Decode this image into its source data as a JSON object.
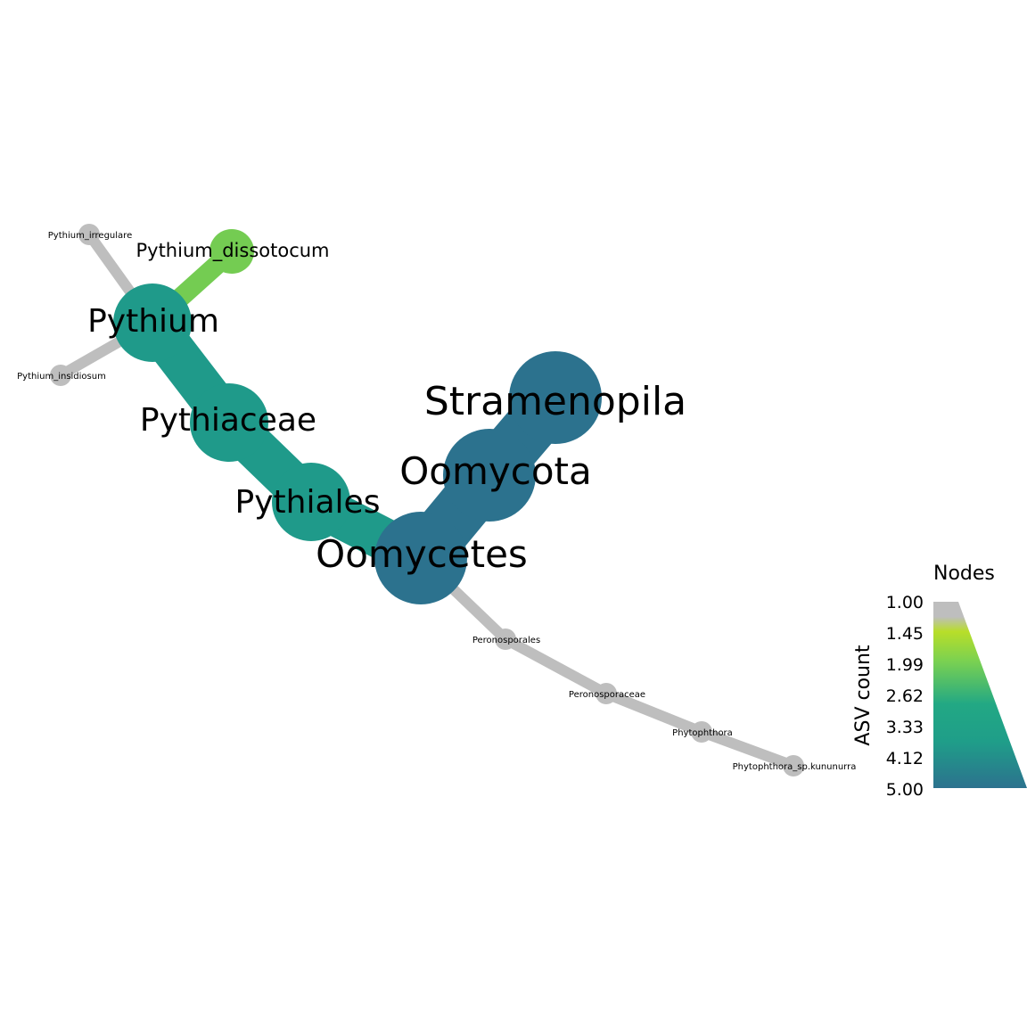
{
  "legend": {
    "title": "Nodes",
    "axis_label": "ASV count",
    "ticks": [
      "1.00",
      "1.45",
      "1.99",
      "2.62",
      "3.33",
      "4.12",
      "5.00"
    ],
    "colors": [
      "#bebebe",
      "#b8de29",
      "#7ad151",
      "#22a884",
      "#1f9e89",
      "#26828e",
      "#2c728e"
    ]
  },
  "nodes": [
    {
      "id": "stramenopila",
      "label": "Stramenopila",
      "asv_count": 5,
      "color": "#2c728e"
    },
    {
      "id": "oomycota",
      "label": "Oomycota",
      "asv_count": 5,
      "color": "#2c728e"
    },
    {
      "id": "oomycetes",
      "label": "Oomycetes",
      "asv_count": 5,
      "color": "#2c728e"
    },
    {
      "id": "pythiales",
      "label": "Pythiales",
      "asv_count": 4,
      "color": "#1f9a8a"
    },
    {
      "id": "pythiaceae",
      "label": "Pythiaceae",
      "asv_count": 4,
      "color": "#1f9a8a"
    },
    {
      "id": "pythium",
      "label": "Pythium",
      "asv_count": 4,
      "color": "#1f9a8a"
    },
    {
      "id": "pythium_dissotocum",
      "label": "Pythium_dissotocum",
      "asv_count": 2,
      "color": "#74cc52"
    },
    {
      "id": "pythium_irregulare",
      "label": "Pythium_irregulare",
      "asv_count": 1,
      "color": "#bebebe"
    },
    {
      "id": "pythium_insidiosum",
      "label": "Pythium_insidiosum",
      "asv_count": 1,
      "color": "#bebebe"
    },
    {
      "id": "peronosporales",
      "label": "Peronosporales",
      "asv_count": 1,
      "color": "#bebebe"
    },
    {
      "id": "peronosporaceae",
      "label": "Peronosporaceae",
      "asv_count": 1,
      "color": "#bebebe"
    },
    {
      "id": "phytophthora",
      "label": "Phytophthora",
      "asv_count": 1,
      "color": "#bebebe"
    },
    {
      "id": "phytophthora_sp_kununurra",
      "label": "Phytophthora_sp.kununurra",
      "asv_count": 1,
      "color": "#bebebe"
    }
  ],
  "edges": [
    {
      "from": "stramenopila",
      "to": "oomycota",
      "color": "#2c728e"
    },
    {
      "from": "oomycota",
      "to": "oomycetes",
      "color": "#2c728e"
    },
    {
      "from": "oomycetes",
      "to": "pythiales",
      "color": "#1f9a8a"
    },
    {
      "from": "pythiales",
      "to": "pythiaceae",
      "color": "#1f9a8a"
    },
    {
      "from": "pythiaceae",
      "to": "pythium",
      "color": "#1f9a8a"
    },
    {
      "from": "pythium",
      "to": "pythium_dissotocum",
      "color": "#74cc52"
    },
    {
      "from": "pythium",
      "to": "pythium_irregulare",
      "color": "#bebebe"
    },
    {
      "from": "pythium",
      "to": "pythium_insidiosum",
      "color": "#bebebe"
    },
    {
      "from": "oomycetes",
      "to": "peronosporales",
      "color": "#bebebe"
    },
    {
      "from": "peronosporales",
      "to": "peronosporaceae",
      "color": "#bebebe"
    },
    {
      "from": "peronosporaceae",
      "to": "phytophthora",
      "color": "#bebebe"
    },
    {
      "from": "phytophthora",
      "to": "phytophthora_sp_kununurra",
      "color": "#bebebe"
    }
  ]
}
